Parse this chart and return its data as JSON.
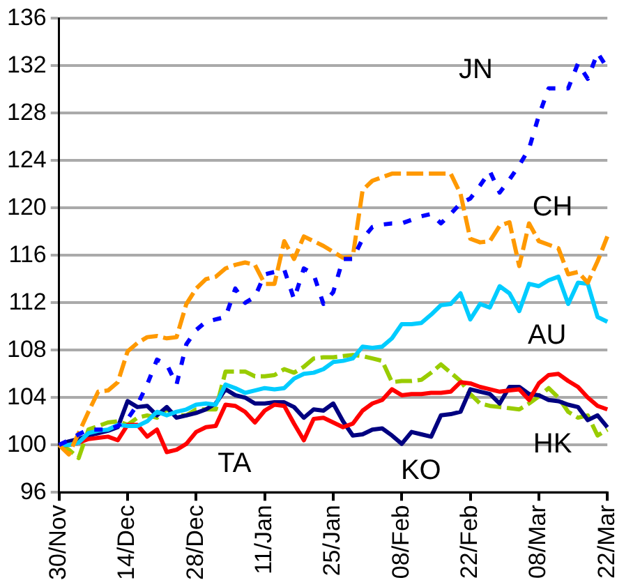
{
  "chart_data": {
    "type": "line",
    "legend": false,
    "grid": "y",
    "ylim": [
      96,
      136
    ],
    "yticks": [
      96,
      100,
      104,
      108,
      112,
      116,
      120,
      124,
      128,
      132,
      136
    ],
    "categories": [
      "30/Nov",
      null,
      null,
      null,
      null,
      null,
      null,
      "14/Dec",
      null,
      null,
      null,
      null,
      null,
      null,
      "28/Dec",
      null,
      null,
      null,
      null,
      null,
      null,
      "11/Jan",
      null,
      null,
      null,
      null,
      null,
      null,
      "25/Jan",
      null,
      null,
      null,
      null,
      null,
      null,
      "08/Feb",
      null,
      null,
      null,
      null,
      null,
      null,
      "22/Feb",
      null,
      null,
      null,
      null,
      null,
      null,
      "08/Mar",
      null,
      null,
      null,
      null,
      null,
      null,
      "22/Mar"
    ],
    "series": [
      {
        "name": "JN",
        "color": "#0000ff",
        "line_style": "dotted",
        "values": [
          100,
          100.4,
          100.9,
          101.3,
          101.3,
          101.3,
          101.6,
          102.2,
          103.4,
          105.1,
          107.2,
          106.8,
          105.1,
          108.5,
          109.7,
          110.4,
          110.6,
          110.8,
          113.2,
          112,
          112.5,
          114.4,
          114.6,
          114.8,
          112.3,
          114.9,
          114.4,
          111.9,
          112.9,
          115.7,
          115.7,
          117.4,
          118.4,
          118.6,
          118.7,
          118.7,
          119,
          119.3,
          119.5,
          118.7,
          119.5,
          120.4,
          120.8,
          121.9,
          123.1,
          121.3,
          122.4,
          123.6,
          125,
          127.8,
          130.1,
          130.1,
          130.1,
          132.2,
          130.9,
          133.1,
          131.8
        ]
      },
      {
        "name": "CH",
        "color": "#ff9900",
        "line_style": "dashed",
        "values": [
          100,
          99.2,
          101,
          102.8,
          104.5,
          104.6,
          105.3,
          107.9,
          108.6,
          109.1,
          109.2,
          109,
          109.1,
          111.9,
          113.2,
          114,
          114.2,
          114.9,
          115.2,
          115.4,
          115.2,
          113.6,
          113.6,
          117.2,
          115.7,
          117.6,
          117.2,
          116.8,
          116.3,
          115.8,
          115.9,
          121.5,
          122.3,
          122.6,
          122.9,
          122.9,
          122.9,
          122.9,
          122.9,
          122.9,
          122.9,
          121.2,
          117.4,
          117.1,
          117.2,
          118.5,
          118.8,
          115.1,
          118.7,
          117.2,
          116.9,
          116.6,
          114.4,
          114.6,
          113.7,
          115.5,
          117.6
        ]
      },
      {
        "name": "AU",
        "color": "#00ccff",
        "line_style": "solid",
        "values": [
          100,
          100,
          100.2,
          101,
          101.2,
          101.3,
          101.7,
          101.6,
          101.6,
          102,
          102.8,
          102.5,
          102.8,
          103,
          103.4,
          103.5,
          103.4,
          105.1,
          104.8,
          104.4,
          104.6,
          104.8,
          104.7,
          104.8,
          105.6,
          106,
          106.1,
          106.4,
          107,
          107.1,
          107.3,
          108.3,
          108.2,
          108.3,
          109,
          110.2,
          110.2,
          110.3,
          111,
          111.8,
          111.9,
          112.8,
          110.6,
          111.9,
          111.6,
          113.4,
          112.8,
          111.3,
          113.6,
          113.4,
          113.9,
          114.2,
          111.9,
          113.7,
          113.6,
          110.8,
          110.4
        ]
      },
      {
        "name": "TA",
        "color": "#ff0000",
        "line_style": "solid",
        "values": [
          100,
          100,
          100.2,
          100.5,
          100.6,
          100.7,
          100.4,
          101.7,
          101.7,
          100.7,
          101.3,
          99.4,
          99.6,
          100.1,
          101.1,
          101.5,
          101.6,
          103.4,
          103.3,
          102.8,
          101.9,
          102.9,
          103.4,
          103.3,
          101.8,
          100.4,
          102.2,
          102.3,
          101.9,
          101.5,
          101.8,
          102.9,
          103.5,
          103.8,
          104.7,
          104.2,
          104.3,
          104.3,
          104.4,
          104.4,
          104.5,
          105.3,
          105.2,
          104.9,
          104.7,
          104.5,
          104.6,
          104.7,
          103.8,
          105.2,
          105.9,
          106,
          105.4,
          104.9,
          104,
          103.3,
          103
        ]
      },
      {
        "name": "KO",
        "color": "#000080",
        "line_style": "solid",
        "values": [
          100,
          100.3,
          100.5,
          100.8,
          101,
          101.2,
          101.5,
          103.7,
          103.2,
          103.3,
          102.5,
          103.2,
          102.3,
          102.5,
          102.7,
          103,
          103.5,
          104.7,
          104.2,
          104,
          103.5,
          103.5,
          103.6,
          103.6,
          103.2,
          102.3,
          103,
          102.9,
          103.5,
          102,
          100.8,
          100.9,
          101.3,
          101.4,
          100.8,
          100.1,
          101.1,
          100.9,
          100.7,
          102.5,
          102.6,
          102.8,
          104.7,
          104.5,
          104.3,
          103.5,
          104.9,
          104.9,
          104.3,
          104.2,
          103.8,
          103.7,
          103.4,
          103.2,
          102.1,
          102.5,
          101.5
        ]
      },
      {
        "name": "HK",
        "color": "#99cc00",
        "line_style": "dashed",
        "values": [
          100,
          99.6,
          98.9,
          101.3,
          101.6,
          101.9,
          102,
          101.7,
          102.3,
          102.5,
          102.3,
          103,
          102.5,
          102.5,
          103,
          103,
          103,
          106.2,
          106.2,
          106.2,
          105.8,
          105.8,
          105.9,
          106.4,
          106.1,
          106.6,
          107.3,
          107.4,
          107.4,
          107.5,
          107.6,
          107.5,
          107.3,
          107.1,
          105.3,
          105.4,
          105.4,
          105.5,
          106.1,
          106.8,
          106.1,
          105.4,
          104.3,
          103.5,
          103.3,
          103.2,
          103.1,
          103,
          103.5,
          104.1,
          104.8,
          104,
          102.8,
          102.3,
          102.5,
          100.8,
          101.3
        ]
      }
    ]
  }
}
